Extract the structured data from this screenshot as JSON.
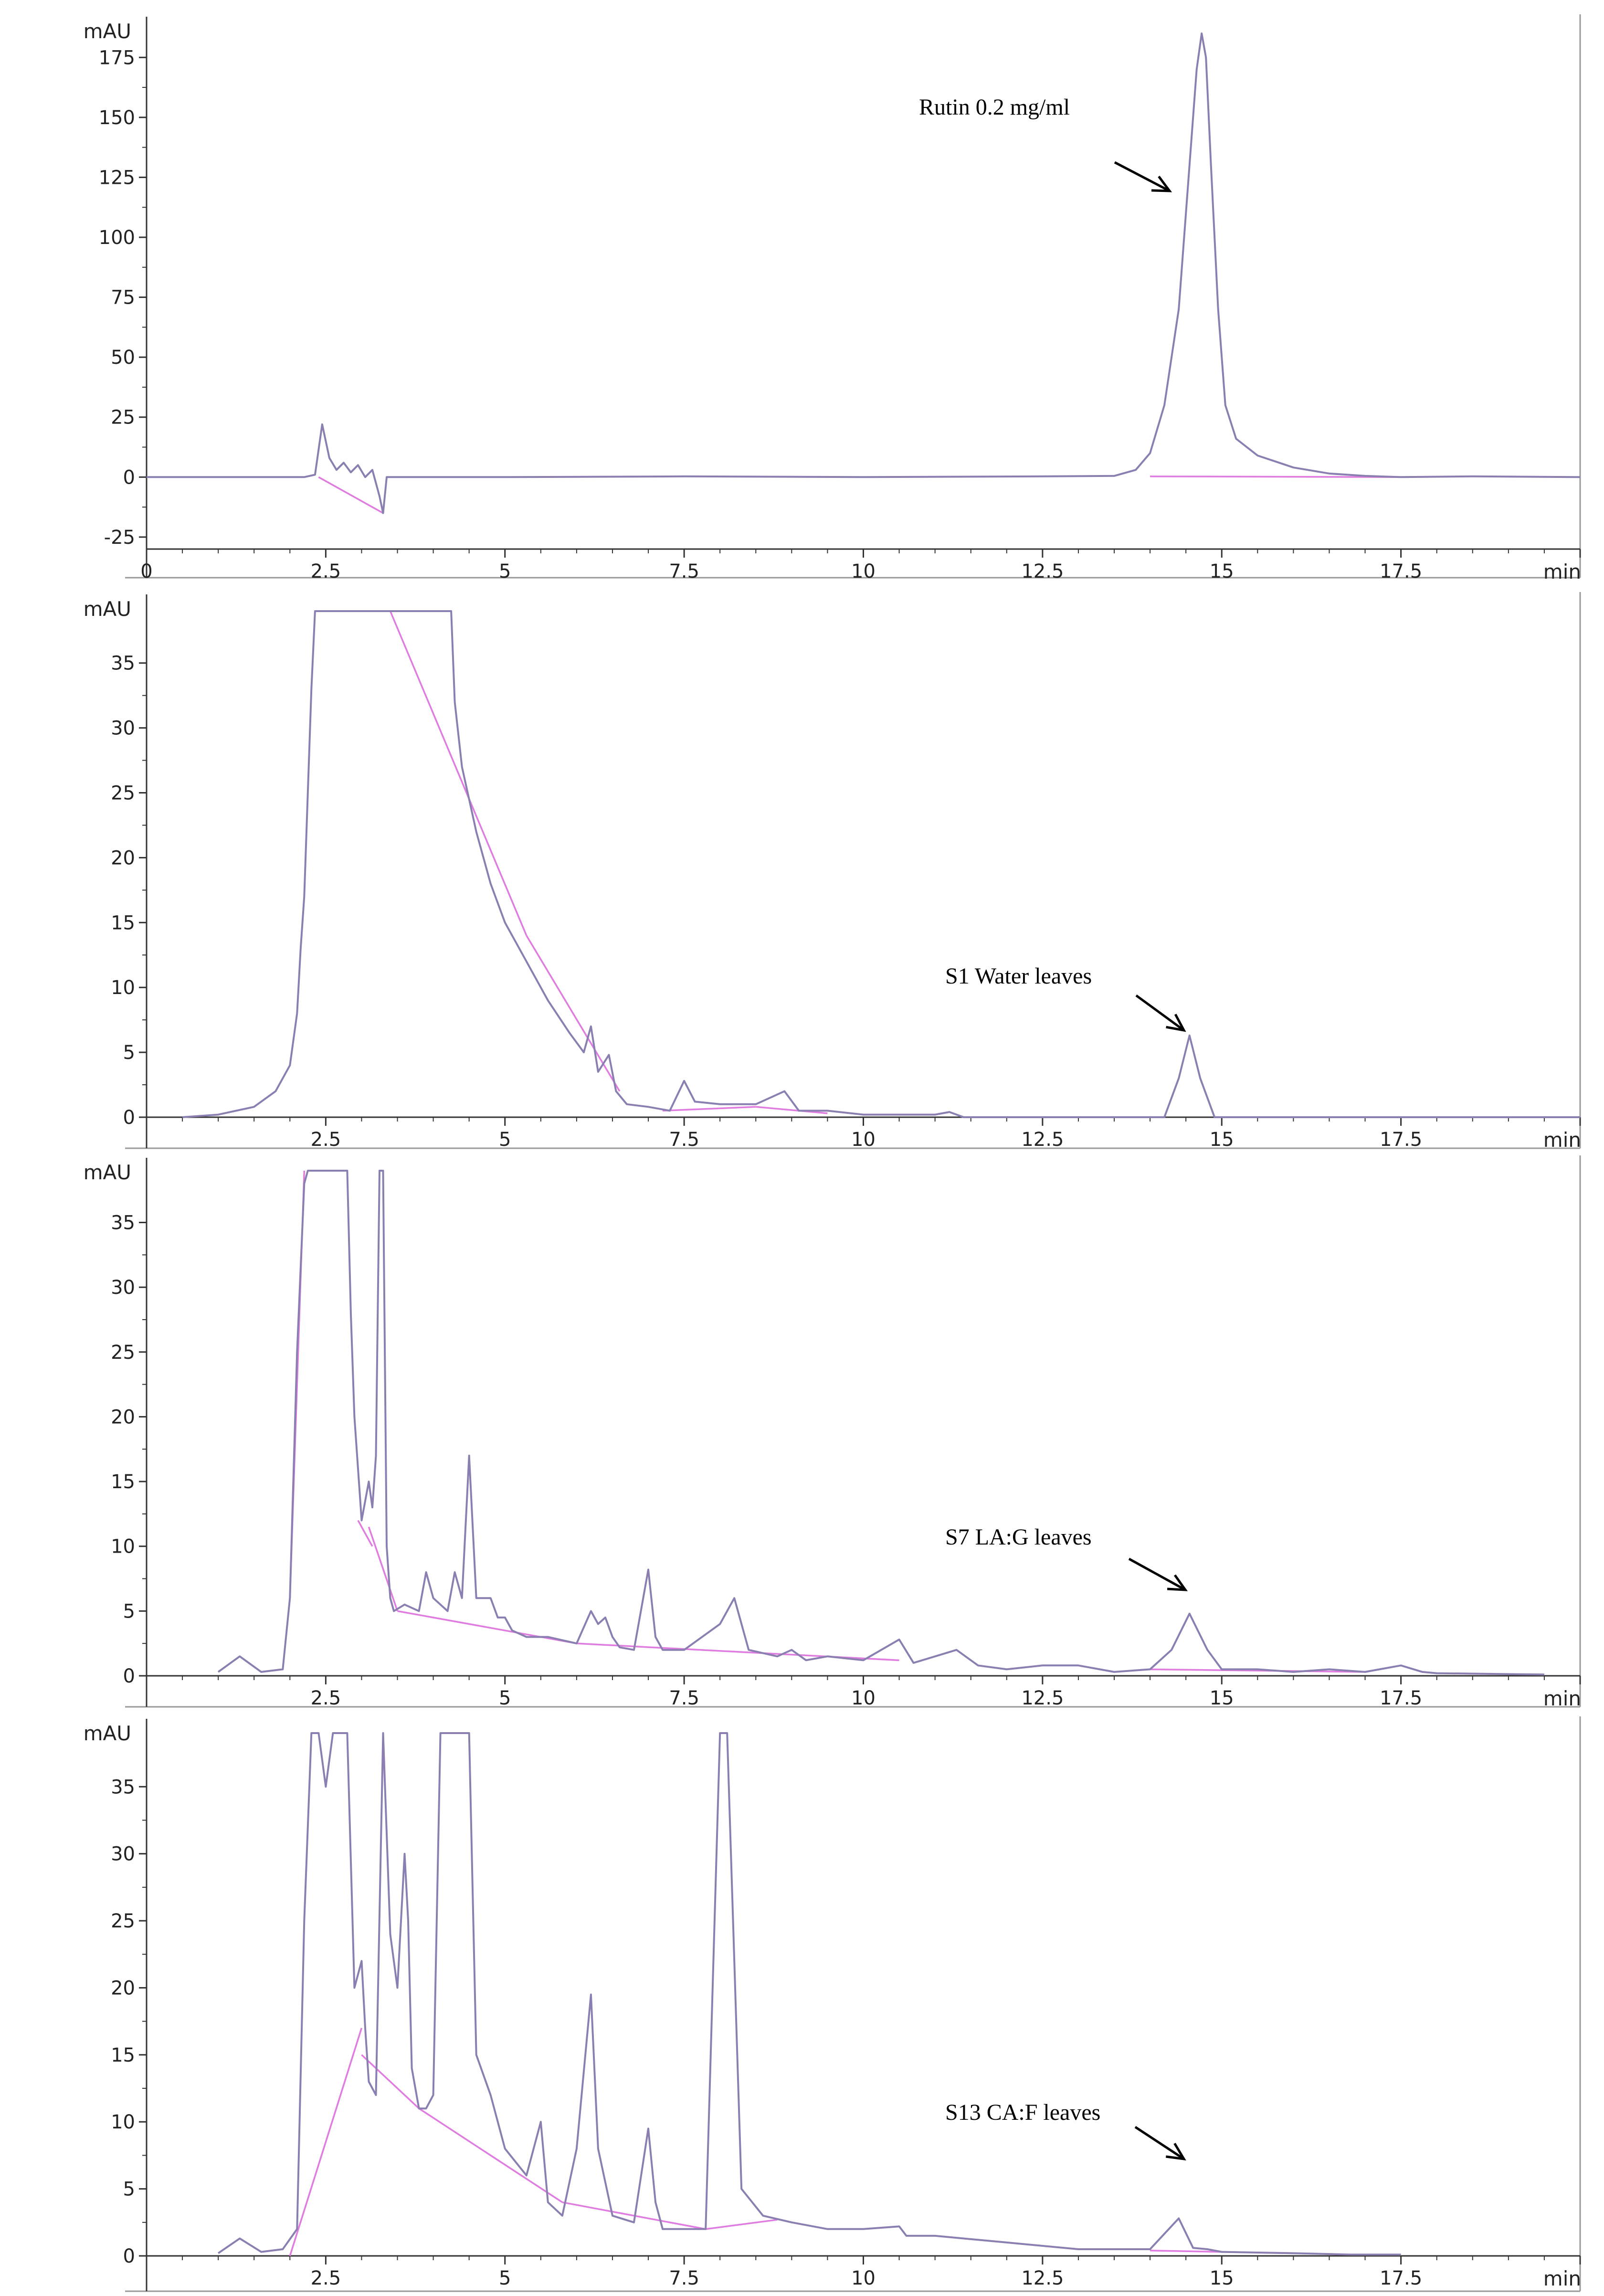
{
  "chart_data": [
    {
      "type": "line",
      "panel": "rutin-standard",
      "ylabel": "mAU",
      "xlabel": "min",
      "xlim": [
        0,
        20
      ],
      "ylim": [
        -30,
        187
      ],
      "xticks": [
        0,
        2.5,
        5,
        7.5,
        10,
        12.5,
        15,
        17.5
      ],
      "xtick_labels": [
        "0",
        "2.5",
        "5",
        "7.5",
        "10",
        "12.5",
        "15",
        "17.5"
      ],
      "yticks": [
        -25,
        0,
        25,
        50,
        75,
        100,
        125,
        150,
        175
      ],
      "ytick_labels": [
        "-25",
        "0",
        "25",
        "50",
        "75",
        "100",
        "125",
        "150",
        "175"
      ],
      "annotation": "Rutin 0.2 mg/ml",
      "series": [
        {
          "x": [
            0,
            2.2,
            2.35,
            2.45,
            2.55,
            2.65,
            2.75,
            2.85,
            2.95,
            3.05,
            3.15,
            3.25,
            3.3,
            3.35,
            5,
            7.5,
            10,
            12.5,
            13.5,
            13.8,
            14.0,
            14.2,
            14.4,
            14.55,
            14.65,
            14.72,
            14.78,
            14.85,
            14.95,
            15.05,
            15.2,
            15.5,
            16.0,
            16.5,
            17.0,
            17.5,
            18.5,
            20
          ],
          "y": [
            0,
            0,
            1,
            22,
            8,
            3,
            6,
            2,
            5,
            0,
            3,
            -8,
            -15,
            0,
            0,
            0.3,
            0,
            0.3,
            0.5,
            3,
            10,
            30,
            70,
            130,
            170,
            185,
            175,
            130,
            70,
            30,
            16,
            9,
            4,
            1.5,
            0.5,
            0,
            0.3,
            0
          ]
        }
      ],
      "baseline_segments": [
        {
          "x": [
            2.4,
            3.3
          ],
          "y": [
            0,
            -15
          ]
        },
        {
          "x": [
            14.0,
            17.5
          ],
          "y": [
            0.3,
            0
          ]
        }
      ]
    },
    {
      "type": "line",
      "panel": "s1-water-leaves",
      "ylabel": "mAU",
      "xlabel": "min",
      "xlim": [
        0,
        20
      ],
      "ylim": [
        0,
        39
      ],
      "xticks": [
        2.5,
        5,
        7.5,
        10,
        12.5,
        15,
        17.5
      ],
      "xtick_labels": [
        "2.5",
        "5",
        "7.5",
        "10",
        "12.5",
        "15",
        "17.5"
      ],
      "yticks": [
        0,
        5,
        10,
        15,
        20,
        25,
        30,
        35
      ],
      "ytick_labels": [
        "0",
        "5",
        "10",
        "15",
        "20",
        "25",
        "30",
        "35"
      ],
      "annotation": "S1 Water leaves",
      "series": [
        {
          "x": [
            0.5,
            1.0,
            1.5,
            1.8,
            2.0,
            2.1,
            2.15,
            2.2,
            2.25,
            2.3,
            2.35,
            2.4,
            2.45,
            4.25,
            4.3,
            4.4,
            4.6,
            4.8,
            5.0,
            5.3,
            5.6,
            5.9,
            6.1,
            6.2,
            6.3,
            6.45,
            6.55,
            6.7,
            7.0,
            7.3,
            7.5,
            7.65,
            8.0,
            8.5,
            8.9,
            9.1,
            9.5,
            10.0,
            11.0,
            11.2,
            11.4,
            13.5,
            14.2,
            14.4,
            14.55,
            14.7,
            14.9,
            15.5,
            20
          ],
          "y": [
            0,
            0.2,
            0.8,
            2,
            4,
            8,
            13,
            17,
            25,
            33,
            39,
            39,
            39,
            39,
            32,
            27,
            22,
            18,
            15,
            12,
            9,
            6.5,
            5,
            7,
            3.5,
            4.8,
            2,
            1,
            0.8,
            0.5,
            2.8,
            1.2,
            1,
            1,
            2,
            0.5,
            0.5,
            0.2,
            0.2,
            0.4,
            0,
            0,
            0,
            3,
            6.3,
            3,
            0,
            0,
            0
          ]
        }
      ],
      "baseline_segments": [
        {
          "x": [
            3.4,
            5.3
          ],
          "y": [
            39,
            14
          ]
        },
        {
          "x": [
            5.3,
            6.6
          ],
          "y": [
            14,
            2
          ]
        },
        {
          "x": [
            7.2,
            8.5
          ],
          "y": [
            0.5,
            0.8
          ]
        },
        {
          "x": [
            8.5,
            9.5
          ],
          "y": [
            0.8,
            0.3
          ]
        }
      ]
    },
    {
      "type": "line",
      "panel": "s7-la-g-leaves",
      "ylabel": "mAU",
      "xlabel": "min",
      "xlim": [
        0,
        20
      ],
      "ylim": [
        0,
        39
      ],
      "xticks": [
        2.5,
        5,
        7.5,
        10,
        12.5,
        15,
        17.5
      ],
      "xtick_labels": [
        "2.5",
        "5",
        "7.5",
        "10",
        "12.5",
        "15",
        "17.5"
      ],
      "yticks": [
        0,
        5,
        10,
        15,
        20,
        25,
        30,
        35
      ],
      "ytick_labels": [
        "0",
        "5",
        "10",
        "15",
        "20",
        "25",
        "30",
        "35"
      ],
      "annotation": "S7 LA:G leaves",
      "series": [
        {
          "x": [
            1.0,
            1.3,
            1.6,
            1.9,
            2.0,
            2.1,
            2.2,
            2.25,
            2.8,
            2.85,
            2.9,
            3.0,
            3.1,
            3.15,
            3.2,
            3.25,
            3.3,
            3.35,
            3.4,
            3.45,
            3.6,
            3.8,
            3.9,
            4.0,
            4.2,
            4.3,
            4.4,
            4.5,
            4.6,
            4.8,
            4.9,
            5.0,
            5.1,
            5.3,
            5.6,
            6.0,
            6.2,
            6.3,
            6.4,
            6.5,
            6.6,
            6.8,
            7.0,
            7.1,
            7.2,
            7.5,
            8.0,
            8.2,
            8.4,
            8.8,
            9.0,
            9.2,
            9.5,
            10.0,
            10.5,
            10.7,
            11.0,
            11.3,
            11.6,
            12.0,
            12.5,
            13.0,
            13.5,
            14.0,
            14.3,
            14.55,
            14.8,
            15.0,
            15.5,
            16.0,
            16.5,
            17.0,
            17.5,
            17.8,
            18.0,
            19.5
          ],
          "y": [
            0.3,
            1.5,
            0.3,
            0.5,
            6,
            25,
            38,
            39,
            39,
            28,
            20,
            12,
            15,
            13,
            17,
            39,
            39,
            10,
            6,
            5,
            5.5,
            5,
            8,
            6,
            5,
            8,
            6,
            17,
            6,
            6,
            4.5,
            4.5,
            3.5,
            3,
            3,
            2.5,
            5,
            4,
            4.5,
            3,
            2.2,
            2,
            8.2,
            3,
            2,
            2,
            4,
            6,
            2,
            1.5,
            2,
            1.2,
            1.5,
            1.2,
            2.8,
            1,
            1.5,
            2,
            0.8,
            0.5,
            0.8,
            0.8,
            0.3,
            0.5,
            2,
            4.8,
            2,
            0.5,
            0.5,
            0.3,
            0.5,
            0.3,
            0.8,
            0.3,
            0.2,
            0.1
          ]
        }
      ],
      "baseline_segments": [
        {
          "x": [
            2.0,
            2.2
          ],
          "y": [
            6,
            39
          ]
        },
        {
          "x": [
            2.95,
            3.15
          ],
          "y": [
            12,
            10
          ]
        },
        {
          "x": [
            3.1,
            3.5
          ],
          "y": [
            11.5,
            5
          ]
        },
        {
          "x": [
            3.5,
            6.0
          ],
          "y": [
            5,
            2.5
          ]
        },
        {
          "x": [
            6.0,
            10.5
          ],
          "y": [
            2.5,
            1.2
          ]
        },
        {
          "x": [
            14.0,
            17.0
          ],
          "y": [
            0.5,
            0.3
          ]
        }
      ]
    },
    {
      "type": "line",
      "panel": "s13-ca-f-leaves",
      "ylabel": "mAU",
      "xlabel": "min",
      "xlim": [
        0,
        20
      ],
      "ylim": [
        0,
        39
      ],
      "xticks": [
        2.5,
        5,
        7.5,
        10,
        12.5,
        15,
        17.5
      ],
      "xtick_labels": [
        "2.5",
        "5",
        "7.5",
        "10",
        "12.5",
        "15",
        "17.5"
      ],
      "yticks": [
        0,
        5,
        10,
        15,
        20,
        25,
        30,
        35
      ],
      "ytick_labels": [
        "0",
        "5",
        "10",
        "15",
        "20",
        "25",
        "30",
        "35"
      ],
      "annotation": "S13 CA:F leaves",
      "series": [
        {
          "x": [
            1.0,
            1.3,
            1.6,
            1.9,
            2.1,
            2.2,
            2.3,
            2.4,
            2.5,
            2.6,
            2.7,
            2.8,
            2.9,
            3.0,
            3.05,
            3.1,
            3.2,
            3.3,
            3.4,
            3.5,
            3.6,
            3.65,
            3.7,
            3.8,
            3.9,
            4.0,
            4.1,
            4.2,
            4.4,
            4.5,
            4.6,
            4.8,
            5.0,
            5.3,
            5.5,
            5.6,
            5.8,
            6.0,
            6.2,
            6.3,
            6.5,
            6.8,
            7.0,
            7.1,
            7.2,
            7.5,
            7.8,
            8.0,
            8.1,
            8.3,
            8.6,
            9.0,
            9.5,
            10.0,
            10.5,
            10.6,
            11.0,
            12.0,
            13.0,
            14.0,
            14.4,
            14.6,
            14.8,
            15.0,
            16.0,
            16.8,
            17.5
          ],
          "y": [
            0.2,
            1.3,
            0.3,
            0.5,
            2,
            25,
            39,
            39,
            35,
            39,
            39,
            39,
            20,
            22,
            17,
            13,
            12,
            39,
            24,
            20,
            30,
            25,
            14,
            11,
            11,
            12,
            39,
            39,
            39,
            39,
            15,
            12,
            8,
            6,
            10,
            4,
            3,
            8,
            19.5,
            8,
            3,
            2.5,
            9.5,
            4,
            2,
            2,
            2,
            39,
            39,
            5,
            3,
            2.5,
            2,
            2,
            2.2,
            1.5,
            1.5,
            1,
            0.5,
            0.5,
            2.8,
            0.6,
            0.5,
            0.3,
            0.2,
            0.1,
            0.1
          ]
        }
      ],
      "baseline_segments": [
        {
          "x": [
            2.0,
            3.0
          ],
          "y": [
            0,
            17
          ]
        },
        {
          "x": [
            3.0,
            3.8
          ],
          "y": [
            15,
            11
          ]
        },
        {
          "x": [
            3.8,
            5.8
          ],
          "y": [
            11,
            4
          ]
        },
        {
          "x": [
            5.8,
            7.8
          ],
          "y": [
            4,
            2
          ]
        },
        {
          "x": [
            7.8,
            8.8
          ],
          "y": [
            2,
            2.7
          ]
        },
        {
          "x": [
            14.0,
            16.0
          ],
          "y": [
            0.4,
            0.2
          ]
        }
      ]
    }
  ]
}
